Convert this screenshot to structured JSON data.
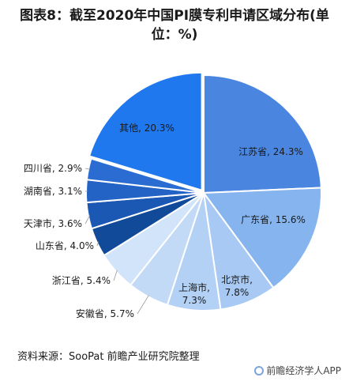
{
  "header": {
    "title_line1": "图表8：截至2020年中国PI膜专利申请区域分布(单",
    "title_line2": "位：%)"
  },
  "footer": {
    "source": "资料来源：SooPat 前瞻产业研究院整理",
    "brand": "前瞻经济学人APP"
  },
  "chart_data": {
    "type": "pie",
    "slices": [
      {
        "label": "江苏省, 24.3%",
        "value": 24.3,
        "color": "#4a86e0"
      },
      {
        "label": "广东省, 15.6%",
        "value": 15.6,
        "color": "#86b4ee"
      },
      {
        "label": "北京市, 7.8%",
        "value": 7.8,
        "color": "#a7c9f3"
      },
      {
        "label": "上海市, 7.3%",
        "value": 7.3,
        "color": "#b3d0f5"
      },
      {
        "label": "安徽省, 5.7%",
        "value": 5.7,
        "color": "#c3daf7"
      },
      {
        "label": "浙江省, 5.4%",
        "value": 5.4,
        "color": "#d2e4fa"
      },
      {
        "label": "山东省, 4.0%",
        "value": 4.0,
        "color": "#124a9a"
      },
      {
        "label": "天津市, 3.6%",
        "value": 3.6,
        "color": "#1a58b3"
      },
      {
        "label": "湖南省, 3.1%",
        "value": 3.1,
        "color": "#2363c6"
      },
      {
        "label": "四川省, 2.9%",
        "value": 2.9,
        "color": "#2b6cd3"
      },
      {
        "label": "其他, 20.3%",
        "value": 20.3,
        "color": "#1f78ee"
      }
    ]
  }
}
